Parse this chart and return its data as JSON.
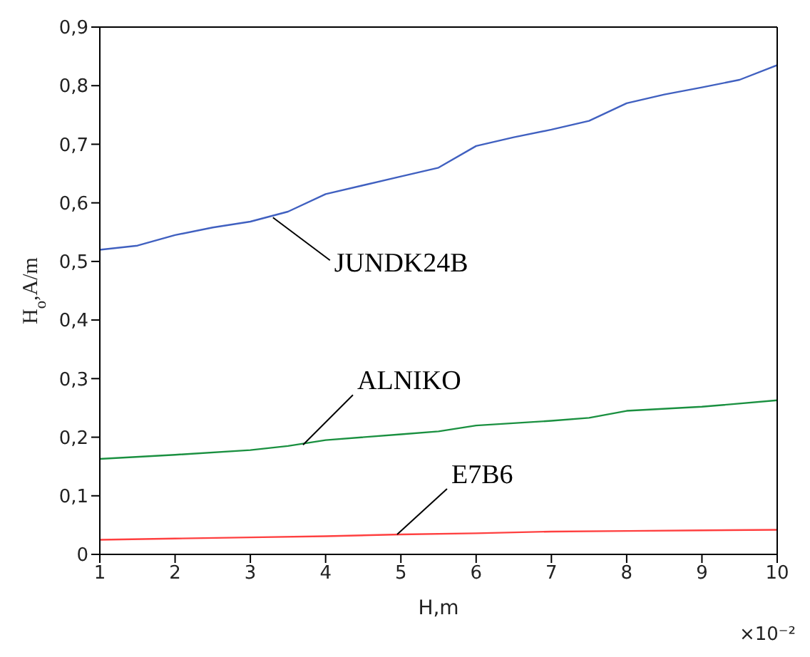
{
  "chart_data": {
    "type": "line",
    "xlabel": "H,m",
    "ylabel": "H$_{o}$,A/m",
    "xlim": [
      1,
      10
    ],
    "xticks": [
      1,
      2,
      3,
      4,
      5,
      6,
      7,
      8,
      9,
      10
    ],
    "ylim": [
      0,
      0.9
    ],
    "yticks": [
      {
        "value": 0,
        "label": "0"
      },
      {
        "value": 0.1,
        "label": "0,1"
      },
      {
        "value": 0.2,
        "label": "0,2"
      },
      {
        "value": 0.3,
        "label": "0,3"
      },
      {
        "value": 0.4,
        "label": "0,4"
      },
      {
        "value": 0.5,
        "label": "0,5"
      },
      {
        "value": 0.6,
        "label": "0,6"
      },
      {
        "value": 0.7,
        "label": "0,7"
      },
      {
        "value": 0.8,
        "label": "0,8"
      },
      {
        "value": 0.9,
        "label": "0,9"
      }
    ],
    "legend": false,
    "marker": "none",
    "line_style": "solid",
    "series": [
      {
        "color": "#4060c0",
        "x": [
          1,
          1.5,
          2,
          2.5,
          3,
          3.5,
          4,
          4.5,
          5,
          5.5,
          6,
          6.5,
          7,
          7.5,
          8,
          8.5,
          9,
          9.5,
          10
        ],
        "values": [
          0.52,
          0.527,
          0.545,
          0.558,
          0.568,
          0.585,
          0.615,
          0.63,
          0.645,
          0.66,
          0.697,
          0.712,
          0.725,
          0.74,
          0.77,
          0.785,
          0.797,
          0.81,
          0.835
        ]
      },
      {
        "color": "#1a9040",
        "x": [
          1,
          2,
          3,
          3.5,
          4,
          5,
          5.5,
          6,
          7,
          7.5,
          8,
          9,
          10
        ],
        "values": [
          0.163,
          0.17,
          0.178,
          0.185,
          0.195,
          0.205,
          0.21,
          0.22,
          0.228,
          0.233,
          0.245,
          0.252,
          0.263
        ]
      },
      {
        "color": "#ff4040",
        "x": [
          1,
          2,
          3,
          4,
          5,
          6,
          7,
          8,
          9,
          10
        ],
        "values": [
          0.025,
          0.027,
          0.029,
          0.031,
          0.034,
          0.036,
          0.039,
          0.04,
          0.041,
          0.042
        ]
      }
    ],
    "annotations": [
      {
        "text": "JUNDK24B",
        "x": 3.3,
        "y": 0.575
      },
      {
        "text": "ALNIKO",
        "x": 3.7,
        "y": 0.187
      },
      {
        "text": "E7B6",
        "x": 4.95,
        "y": 0.034
      },
      "×10⁻²"
    ]
  }
}
